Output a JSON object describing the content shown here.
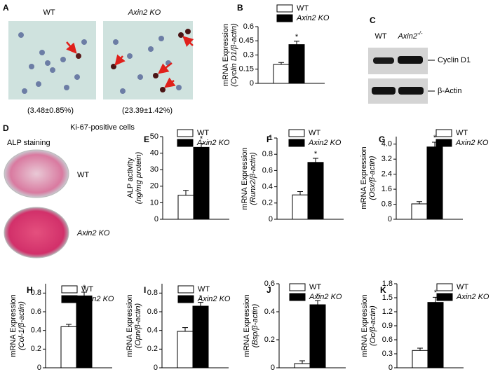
{
  "panel_a": {
    "label": "A",
    "wt": "WT",
    "ko": "Axin2 KO",
    "wt_value": "(3.48±0.85%)",
    "ko_value": "(23.39±1.42%)",
    "caption": "Ki-67-positive cells"
  },
  "panel_c": {
    "label": "C",
    "wt": "WT",
    "ko": "Axin2",
    "ko_sup": "-/-",
    "bands": [
      "Cyclin D1",
      "β-Actin"
    ]
  },
  "panel_d": {
    "label": "D",
    "title": "ALP staining",
    "wt": "WT",
    "ko": "Axin2 KO"
  },
  "chart_data": [
    {
      "type": "bar",
      "panel": "B",
      "ylabel": [
        "mRNA Expression",
        "(Cyclin D1/β-actin)"
      ],
      "categories": [
        null
      ],
      "ylim": [
        0,
        0.6
      ],
      "yticks": [
        0,
        0.15,
        0.3,
        0.45,
        0.6
      ],
      "annotation": "*",
      "series": [
        {
          "name": "WT",
          "color": "#ffffff",
          "values": [
            0.2
          ],
          "errors": [
            0.02
          ]
        },
        {
          "name": "Axin2 KO",
          "color": "#000000",
          "values": [
            0.41
          ],
          "errors": [
            0.035
          ]
        }
      ]
    },
    {
      "type": "bar",
      "panel": "E",
      "ylabel": [
        "ALP activity",
        "(ng/mg protein)"
      ],
      "categories": [
        null
      ],
      "ylim": [
        0,
        50
      ],
      "yticks": [
        0,
        10,
        20,
        30,
        40,
        50
      ],
      "annotation": "*",
      "series": [
        {
          "name": "WT",
          "color": "#ffffff",
          "values": [
            14.5
          ],
          "errors": [
            3
          ]
        },
        {
          "name": "Axin2 KO",
          "color": "#000000",
          "values": [
            43.5
          ],
          "errors": [
            2.5
          ]
        }
      ]
    },
    {
      "type": "bar",
      "panel": "F",
      "ylabel": [
        "mRNA Expression",
        "(Runx2/β-actin)"
      ],
      "categories": [
        null
      ],
      "ylim": [
        0,
        1
      ],
      "yticks": [
        0,
        0.2,
        0.4,
        0.6,
        0.8,
        1
      ],
      "annotation": "*",
      "series": [
        {
          "name": "WT",
          "color": "#ffffff",
          "values": [
            0.3
          ],
          "errors": [
            0.04
          ]
        },
        {
          "name": "Axin2 KO",
          "color": "#000000",
          "values": [
            0.7
          ],
          "errors": [
            0.05
          ]
        }
      ]
    },
    {
      "type": "bar",
      "panel": "G",
      "ylabel": [
        "mRNA Expression",
        "(Osx/β-actin)"
      ],
      "categories": [
        null
      ],
      "ylim": [
        0,
        4.4
      ],
      "yticks": [
        0,
        0.8,
        1.6,
        2.4,
        3.2,
        {
          "value": 4,
          "label": "4.0"
        }
      ],
      "annotation": "*",
      "series": [
        {
          "name": "WT",
          "color": "#ffffff",
          "values": [
            0.82
          ],
          "errors": [
            0.12
          ]
        },
        {
          "name": "Axin2 KO",
          "color": "#000000",
          "values": [
            3.85
          ],
          "errors": [
            0.25
          ]
        }
      ]
    },
    {
      "type": "bar",
      "panel": "H",
      "ylabel": [
        "mRNA Expression",
        "(Col-1/β-actin)"
      ],
      "categories": [
        null
      ],
      "ylim": [
        0,
        0.9
      ],
      "yticks": [
        0,
        0.2,
        0.4,
        0.6,
        0.8
      ],
      "annotation": "*",
      "series": [
        {
          "name": "WT",
          "color": "#ffffff",
          "values": [
            0.44
          ],
          "errors": [
            0.025
          ]
        },
        {
          "name": "Axin2 KO",
          "color": "#000000",
          "values": [
            0.77
          ],
          "errors": [
            0.04
          ]
        }
      ]
    },
    {
      "type": "bar",
      "panel": "I",
      "ylabel": [
        "mRNA Expression",
        "(Opn/β-actin)"
      ],
      "categories": [
        null
      ],
      "ylim": [
        0,
        0.9
      ],
      "yticks": [
        0,
        0.2,
        0.4,
        0.6,
        0.8
      ],
      "annotation": "*",
      "series": [
        {
          "name": "WT",
          "color": "#ffffff",
          "values": [
            0.39
          ],
          "errors": [
            0.04
          ]
        },
        {
          "name": "Axin2 KO",
          "color": "#000000",
          "values": [
            0.66
          ],
          "errors": [
            0.04
          ]
        }
      ]
    },
    {
      "type": "bar",
      "panel": "J",
      "ylabel": [
        "mRNA Expression",
        "(Bsp/β-actin)"
      ],
      "categories": [
        null
      ],
      "ylim": [
        0,
        0.6
      ],
      "yticks": [
        0,
        0.2,
        0.4,
        0.6
      ],
      "annotation": "*",
      "series": [
        {
          "name": "WT",
          "color": "#ffffff",
          "values": [
            0.03
          ],
          "errors": [
            0.02
          ]
        },
        {
          "name": "Axin2 KO",
          "color": "#000000",
          "values": [
            0.45
          ],
          "errors": [
            0.03
          ]
        }
      ]
    },
    {
      "type": "bar",
      "panel": "K",
      "ylabel": [
        "mRNA Expression",
        "(Oc/β-actin)"
      ],
      "categories": [
        null
      ],
      "ylim": [
        0,
        1.8
      ],
      "yticks": [
        0,
        0.3,
        0.6,
        0.9,
        1.2,
        1.5,
        1.8
      ],
      "annotation": "*",
      "series": [
        {
          "name": "WT",
          "color": "#ffffff",
          "values": [
            0.37
          ],
          "errors": [
            0.05
          ]
        },
        {
          "name": "Axin2 KO",
          "color": "#000000",
          "values": [
            1.4
          ],
          "errors": [
            0.11
          ]
        }
      ]
    }
  ]
}
